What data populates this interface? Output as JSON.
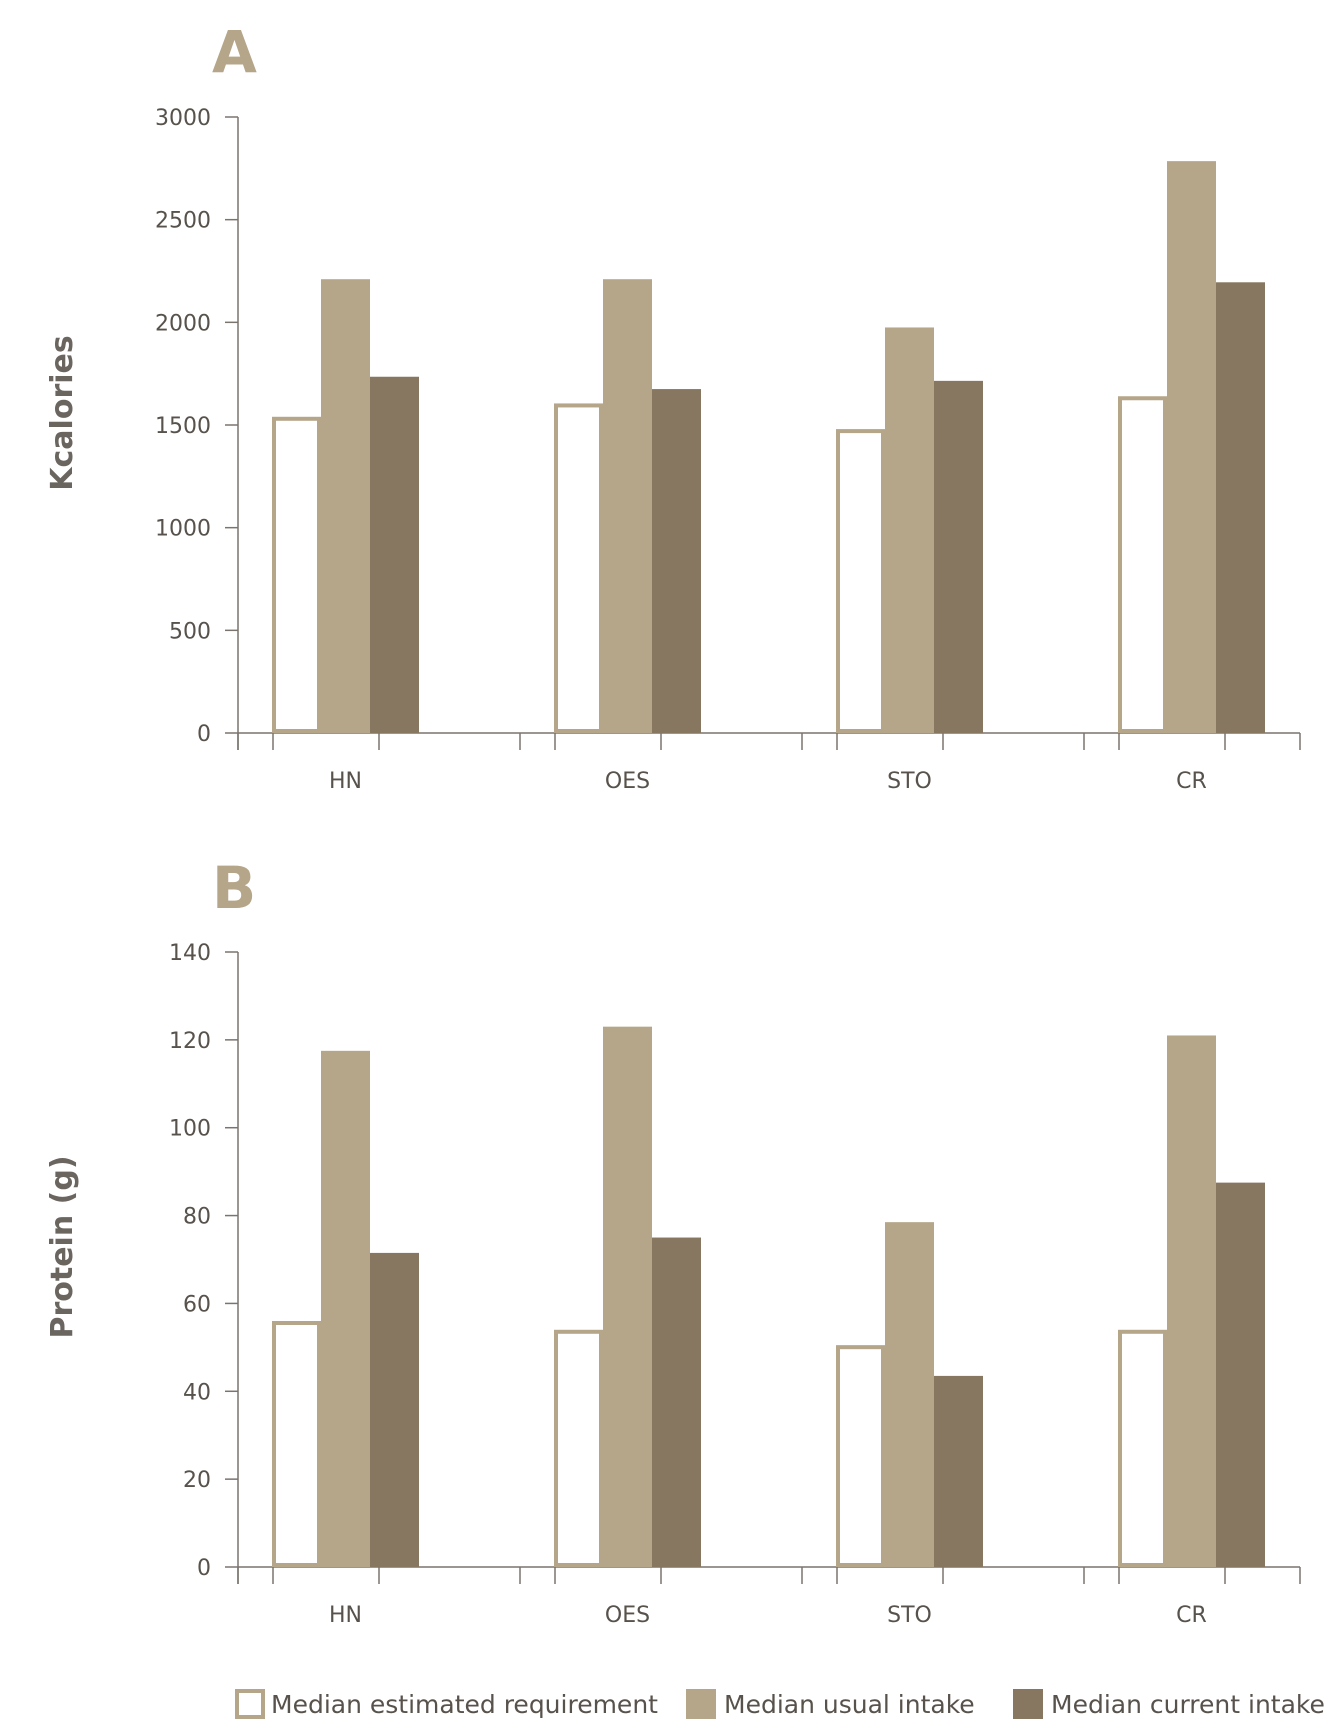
{
  "colors": {
    "accent": "#b5a589",
    "usual": "#b5a589",
    "current": "#877761",
    "axis": "#7a746e",
    "text": "#58524c"
  },
  "legend": {
    "items": [
      {
        "label": "Median estimated requirement",
        "color": "#b5a589",
        "style": "outline"
      },
      {
        "label": "Median usual intake",
        "color": "#b5a589",
        "style": "solid"
      },
      {
        "label": "Median current intake",
        "color": "#877761",
        "style": "solid"
      }
    ]
  },
  "chart_data": [
    {
      "type": "bar",
      "panel": "A",
      "ylabel": "Kcalories",
      "xlabel": "",
      "ylim": [
        0,
        3000
      ],
      "yticks": [
        0,
        500,
        1000,
        1500,
        2000,
        2500,
        3000
      ],
      "categories": [
        "HN",
        "OES",
        "STO",
        "CR"
      ],
      "series": [
        {
          "name": "Median estimated requirement",
          "values": [
            1540,
            1605,
            1480,
            1640
          ]
        },
        {
          "name": "Median usual intake",
          "values": [
            2210,
            2210,
            1975,
            2785
          ]
        },
        {
          "name": "Median current intake",
          "values": [
            1735,
            1675,
            1715,
            2195
          ]
        }
      ]
    },
    {
      "type": "bar",
      "panel": "B",
      "ylabel": "Protein (g)",
      "xlabel": "",
      "ylim": [
        0,
        140
      ],
      "yticks": [
        0,
        20,
        40,
        60,
        80,
        100,
        120,
        140
      ],
      "categories": [
        "HN",
        "OES",
        "STO",
        "CR"
      ],
      "series": [
        {
          "name": "Median estimated requirement",
          "values": [
            56,
            54,
            50.5,
            54
          ]
        },
        {
          "name": "Median usual intake",
          "values": [
            117.5,
            123,
            78.5,
            121
          ]
        },
        {
          "name": "Median current intake",
          "values": [
            71.5,
            75,
            43.5,
            87.5
          ]
        }
      ]
    }
  ]
}
